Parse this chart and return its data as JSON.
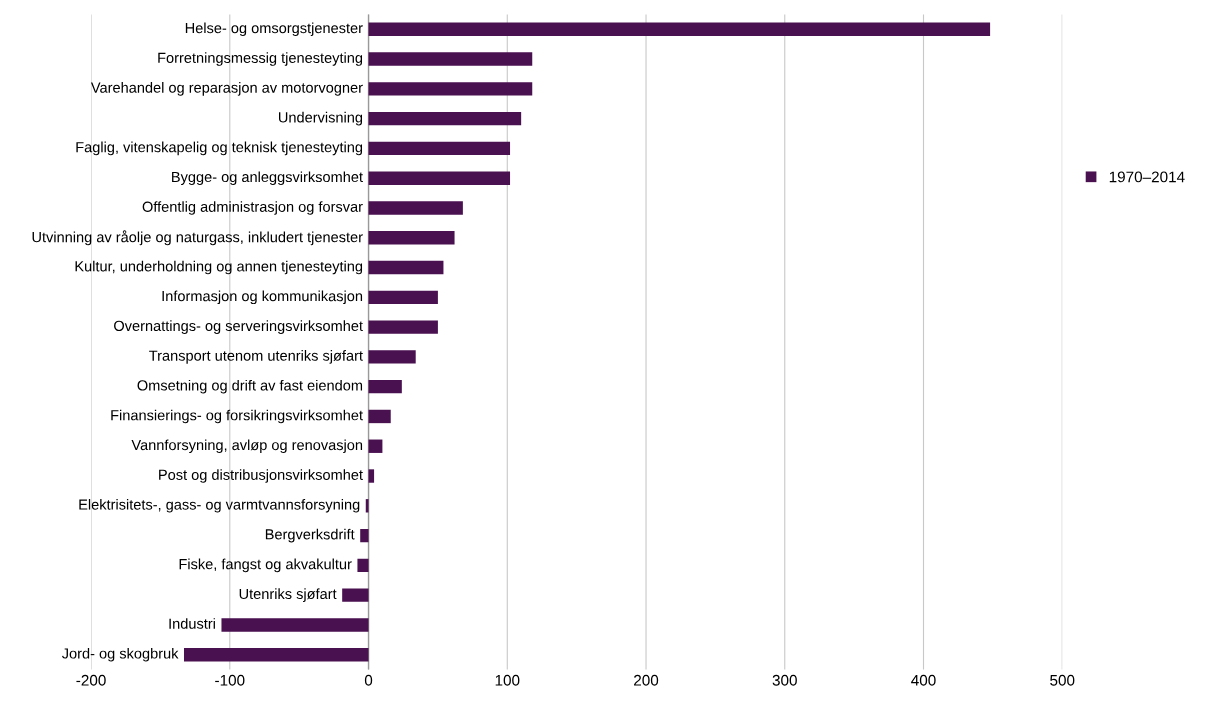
{
  "chart_data": {
    "type": "bar",
    "orientation": "horizontal",
    "categories": [
      "Helse- og omsorgstjenester",
      "Forretningsmessig tjenesteyting",
      "Varehandel og reparasjon av motorvogner",
      "Undervisning",
      "Faglig, vitenskapelig og teknisk tjenesteyting",
      "Bygge- og anleggsvirksomhet",
      "Offentlig administrasjon og forsvar",
      "Utvinning av råolje og naturgass, inkludert tjenester",
      "Kultur, underholdning og annen tjenesteyting",
      "Informasjon og kommunikasjon",
      "Overnattings- og serveringsvirksomhet",
      "Transport utenom utenriks sjøfart",
      "Omsetning og drift av fast eiendom",
      "Finansierings- og forsikringsvirksomhet",
      "Vannforsyning, avløp og renovasjon",
      "Post og distribusjonsvirksomhet",
      "Elektrisitets-, gass- og varmtvannsforsyning",
      "Bergverksdrift",
      "Fiske, fangst og akvakultur",
      "Utenriks sjøfart",
      "Industri",
      "Jord- og skogbruk"
    ],
    "series": [
      {
        "name": "1970–2014",
        "color": "#4a1150",
        "values": [
          448,
          118,
          118,
          110,
          102,
          102,
          68,
          62,
          54,
          50,
          50,
          34,
          24,
          16,
          10,
          4,
          -2,
          -6,
          -8,
          -19,
          -106,
          -133
        ]
      }
    ],
    "xlim": [
      -200,
      500
    ],
    "xticks": [
      -200,
      -100,
      0,
      100,
      200,
      300,
      400,
      500
    ],
    "grid": "x",
    "legend": "right"
  }
}
